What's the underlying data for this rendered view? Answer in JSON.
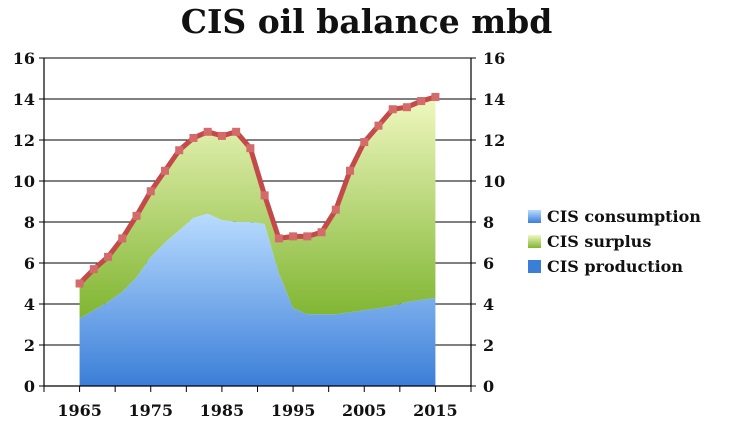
{
  "chart_data": {
    "type": "area",
    "title": "CIS oil balance mbd",
    "xlabel": "",
    "ylabel": "",
    "ylim": [
      0,
      16
    ],
    "xlim": [
      1960,
      2020
    ],
    "x_ticks": [
      "1965",
      "1975",
      "1985",
      "1995",
      "2005",
      "2015"
    ],
    "y_ticks": [
      "0",
      "2",
      "4",
      "6",
      "8",
      "10",
      "12",
      "14",
      "16"
    ],
    "grid": true,
    "legend_position": "right",
    "x": [
      1965,
      1967,
      1969,
      1971,
      1973,
      1975,
      1977,
      1979,
      1981,
      1983,
      1985,
      1987,
      1989,
      1991,
      1993,
      1995,
      1997,
      1999,
      2001,
      2003,
      2005,
      2007,
      2009,
      2011,
      2013,
      2015
    ],
    "series": [
      {
        "name": "CIS consumption",
        "color": "#7fb6ee",
        "values": [
          3.3,
          3.7,
          4.1,
          4.6,
          5.3,
          6.3,
          7.0,
          7.6,
          8.2,
          8.4,
          8.1,
          8.0,
          8.0,
          7.9,
          5.5,
          3.8,
          3.5,
          3.5,
          3.5,
          3.6,
          3.7,
          3.8,
          3.9,
          4.1,
          4.2,
          4.3
        ]
      },
      {
        "name": "CIS surplus",
        "color": "#a6cf4a",
        "values": [
          1.7,
          2.0,
          2.2,
          2.6,
          3.0,
          3.2,
          3.5,
          3.9,
          3.9,
          4.0,
          4.1,
          4.4,
          3.6,
          1.4,
          1.7,
          3.5,
          3.8,
          4.0,
          5.1,
          6.9,
          8.2,
          8.9,
          9.6,
          9.5,
          9.7,
          9.8
        ]
      },
      {
        "name": "CIS production",
        "color": "#c44a4a",
        "values": [
          5.0,
          5.7,
          6.3,
          7.2,
          8.3,
          9.5,
          10.5,
          11.5,
          12.1,
          12.4,
          12.2,
          12.4,
          11.6,
          9.3,
          7.2,
          7.3,
          7.3,
          7.5,
          8.6,
          10.5,
          11.9,
          12.7,
          13.5,
          13.6,
          13.9,
          14.1
        ]
      }
    ]
  }
}
